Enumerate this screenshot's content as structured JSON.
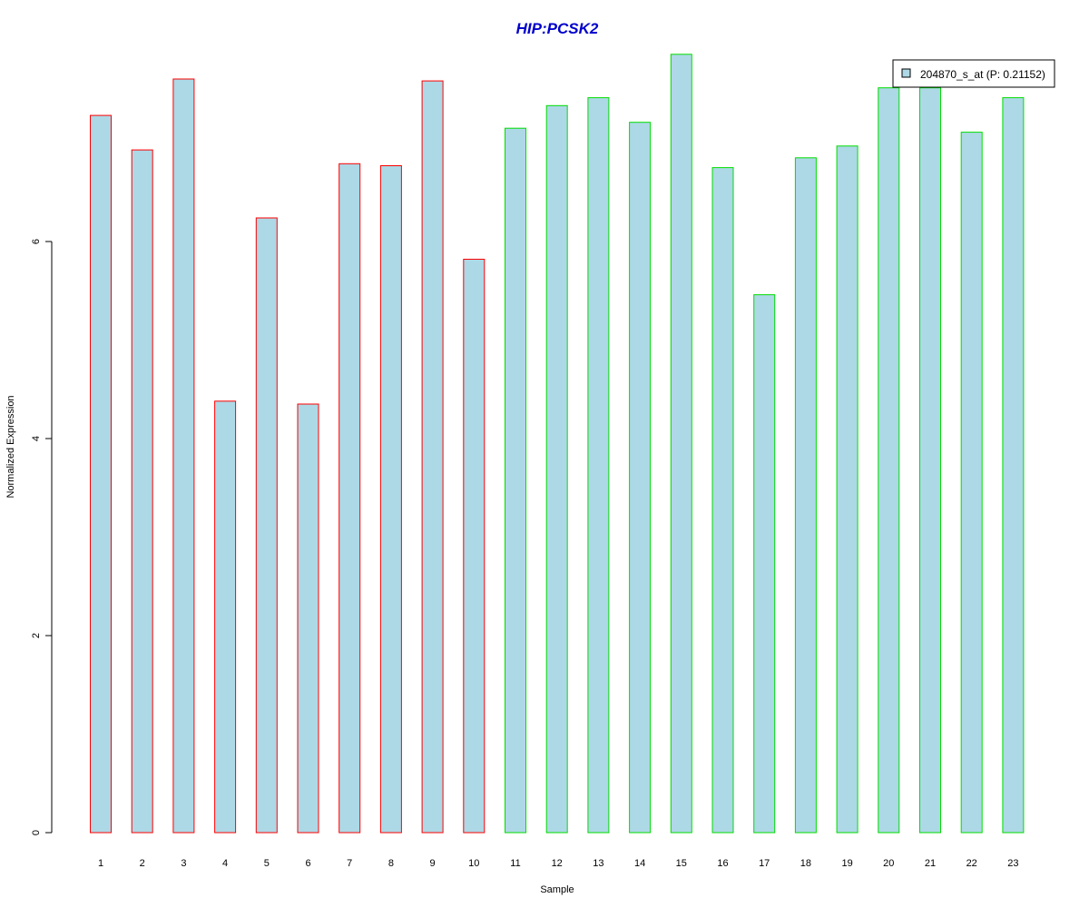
{
  "chart_data": {
    "type": "bar",
    "title": "HIP:PCSK2",
    "xlabel": "Sample",
    "ylabel": "Normalized Expression",
    "categories": [
      "1",
      "2",
      "3",
      "4",
      "5",
      "6",
      "7",
      "8",
      "9",
      "10",
      "11",
      "12",
      "13",
      "14",
      "15",
      "16",
      "17",
      "18",
      "19",
      "20",
      "21",
      "22",
      "23"
    ],
    "series": [
      {
        "name": "204870_s_at (P: 0.21152)",
        "values": [
          7.28,
          6.93,
          7.65,
          4.38,
          6.24,
          4.35,
          6.79,
          6.77,
          7.63,
          5.82,
          7.15,
          7.38,
          7.46,
          7.21,
          7.9,
          6.75,
          5.46,
          6.85,
          6.97,
          7.56,
          7.56,
          7.11,
          7.46
        ]
      }
    ],
    "group_borders": [
      "#ff0000",
      "#ff0000",
      "#ff0000",
      "#ff0000",
      "#ff0000",
      "#ff0000",
      "#ff0000",
      "#ff0000",
      "#ff0000",
      "#ff0000",
      "#00dd00",
      "#00dd00",
      "#00dd00",
      "#00dd00",
      "#00dd00",
      "#00dd00",
      "#00dd00",
      "#00dd00",
      "#00dd00",
      "#00dd00",
      "#00dd00",
      "#00dd00",
      "#00dd00"
    ],
    "yticks": [
      0,
      2,
      4,
      6
    ],
    "ylim": [
      0,
      7.9
    ],
    "legend_position": "top-right",
    "grid": false,
    "colors": {
      "bar_fill": "#add8e6",
      "title": "#0000cc"
    }
  }
}
